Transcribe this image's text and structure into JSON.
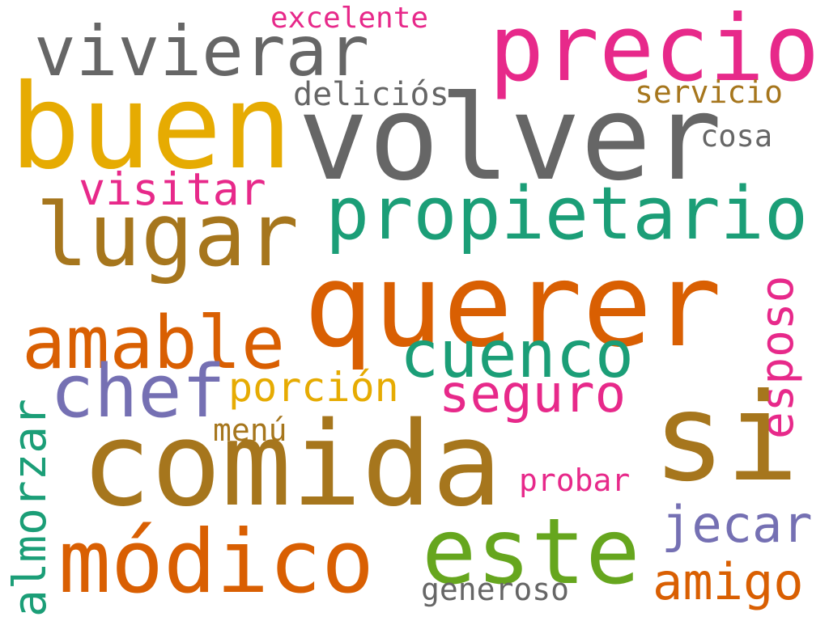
{
  "colors": {
    "gray": "#666666",
    "pink": "#e7298a",
    "gold": "#e6ab02",
    "brown": "#a6761d",
    "teal": "#1b9e77",
    "orange": "#d95f02",
    "purple": "#7570b3",
    "green": "#66a61e"
  },
  "words": {
    "excelente": "excelente",
    "vivierar": "vivierar",
    "precio": "precio",
    "delicios": "deliciós",
    "servicio": "servicio",
    "buen": "buen",
    "volver": "volver",
    "cosa": "cosa",
    "visitar": "visitar",
    "propietario": "propietario",
    "lugar": "lugar",
    "querer": "querer",
    "esposo": "esposo",
    "amable": "amable",
    "cuenco": "cuenco",
    "chef": "chef",
    "porcion": "porción",
    "seguro": "seguro",
    "almorzar": "almorzar",
    "menu": "menú",
    "si": "si",
    "comida": "comida",
    "probar": "probar",
    "jecar": "jecar",
    "este": "este",
    "modico": "módico",
    "amigo": "amigo",
    "generoso": "generoso"
  }
}
